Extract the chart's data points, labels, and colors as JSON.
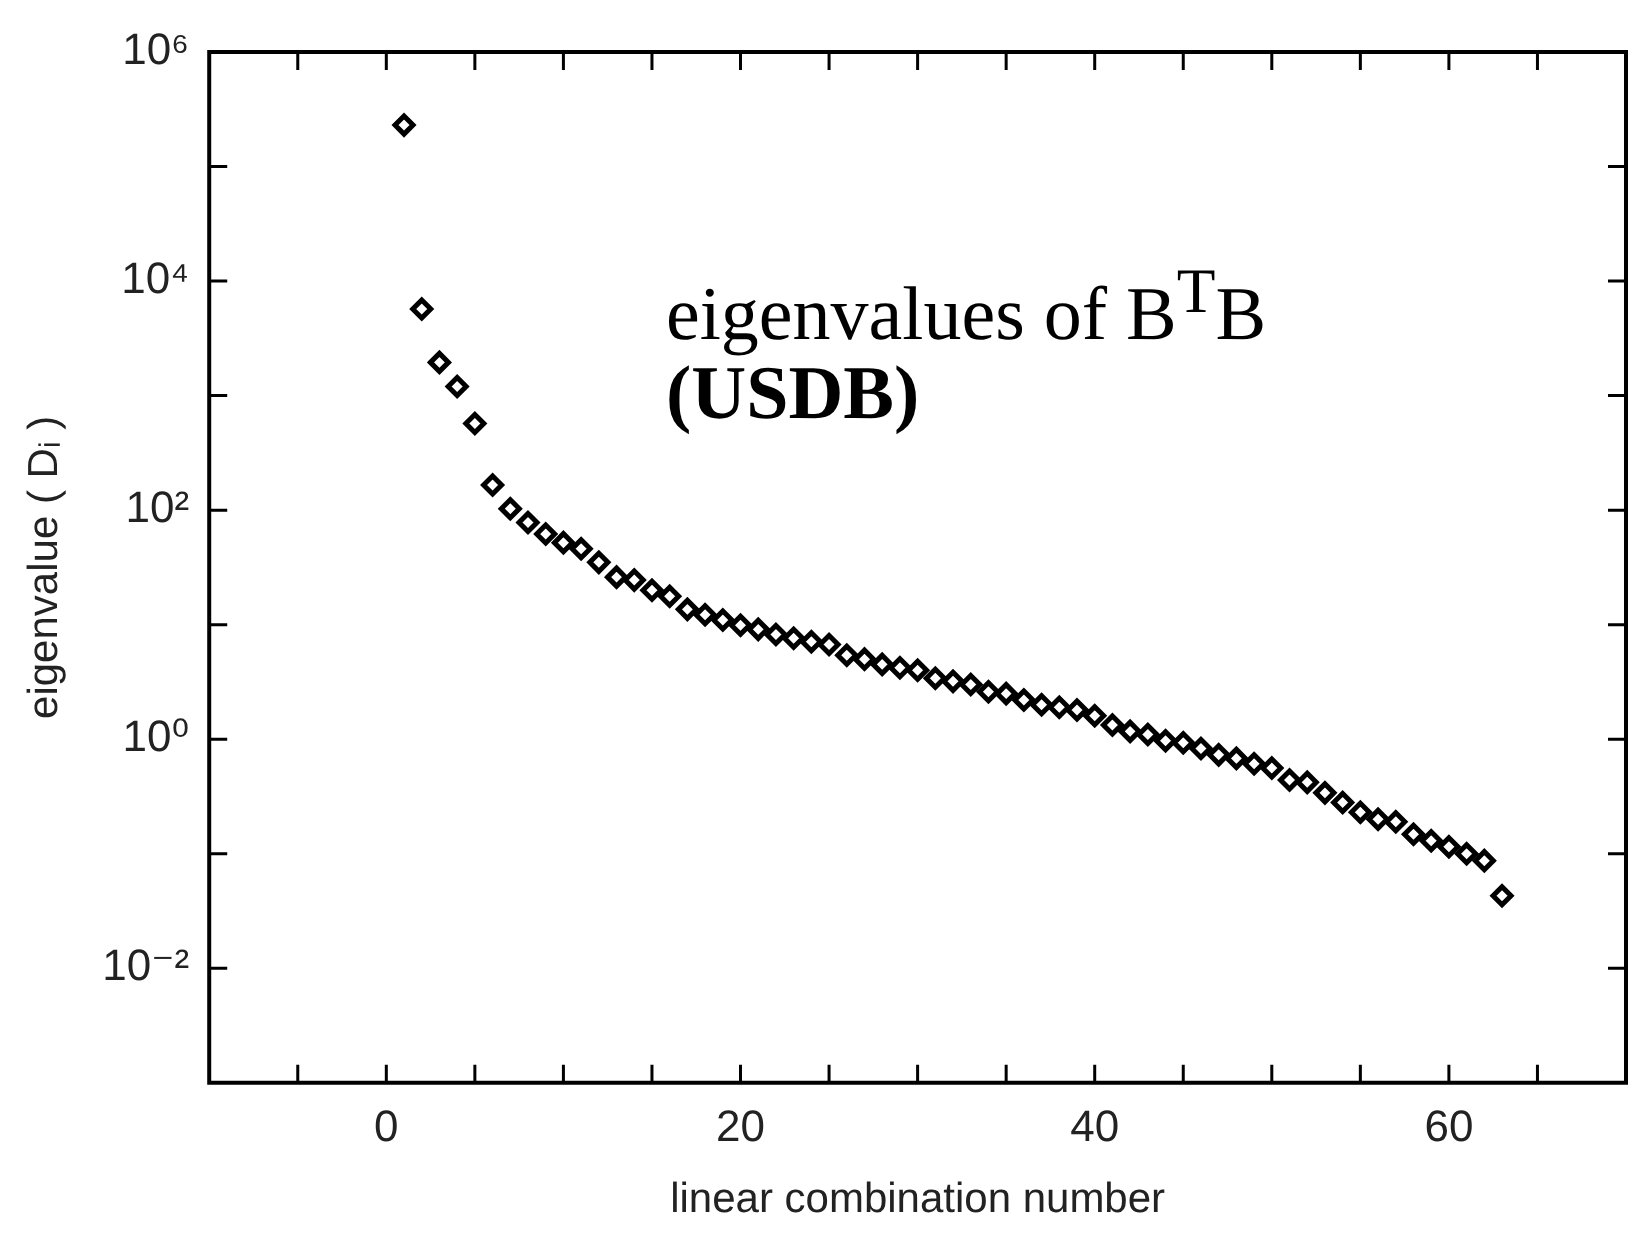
{
  "chart_data": {
    "type": "scatter",
    "xlabel": "linear combination number",
    "ylabel": "eigenvalue ( Dᵢ )",
    "annotations": [
      "eigenvalues of B$^{T}$B",
      "(USDB)"
    ],
    "log": "y",
    "grid": false,
    "legend": false,
    "marker": "diamond",
    "xlim": [
      -10,
      70
    ],
    "xticks": [
      {
        "value": -5,
        "label": null
      },
      0,
      {
        "value": 5,
        "label": null
      },
      {
        "value": 10,
        "label": null
      },
      {
        "value": 15,
        "label": null
      },
      20,
      {
        "value": 25,
        "label": null
      },
      {
        "value": 30,
        "label": null
      },
      {
        "value": 35,
        "label": null
      },
      40,
      {
        "value": 45,
        "label": null
      },
      {
        "value": 50,
        "label": null
      },
      {
        "value": 55,
        "label": null
      },
      60,
      {
        "value": 65,
        "label": null
      }
    ],
    "ylim": [
      0.001,
      1000000
    ],
    "yticks": [
      {
        "value": 0.01,
        "label": "10⁻²"
      },
      {
        "value": 0.1,
        "label": null
      },
      {
        "value": 1,
        "label": "10⁰"
      },
      {
        "value": 10,
        "label": null
      },
      {
        "value": 100,
        "label": "10²"
      },
      {
        "value": 1000,
        "label": null
      },
      {
        "value": 10000,
        "label": "10⁴"
      },
      {
        "value": 100000,
        "label": null
      },
      {
        "value": 1000000,
        "label": "10⁶"
      }
    ],
    "series": [
      {
        "color": "#000000",
        "x": [
          1,
          2,
          3,
          4,
          5,
          6,
          7,
          8,
          9,
          10,
          11,
          12,
          13,
          14,
          15,
          16,
          17,
          18,
          19,
          20,
          21,
          22,
          23,
          24,
          25,
          26,
          27,
          28,
          29,
          30,
          31,
          32,
          33,
          34,
          35,
          36,
          37,
          38,
          39,
          40,
          41,
          42,
          43,
          44,
          45,
          46,
          47,
          48,
          49,
          50,
          51,
          52,
          53,
          54,
          55,
          56,
          57,
          58,
          59,
          60,
          61,
          62,
          63
        ],
        "values": [
          230000,
          5700,
          1950,
          1200,
          570,
          166,
          103,
          78,
          62,
          52,
          46,
          35,
          26,
          24.5,
          20,
          17.7,
          13.6,
          12.2,
          11,
          9.9,
          9.1,
          8.2,
          7.6,
          7.1,
          6.7,
          5.4,
          5.0,
          4.5,
          4.2,
          4.0,
          3.4,
          3.2,
          3.0,
          2.6,
          2.5,
          2.2,
          2.0,
          1.9,
          1.8,
          1.6,
          1.33,
          1.17,
          1.1,
          0.97,
          0.93,
          0.83,
          0.73,
          0.68,
          0.61,
          0.56,
          0.44,
          0.42,
          0.34,
          0.28,
          0.23,
          0.2,
          0.19,
          0.148,
          0.13,
          0.115,
          0.1,
          0.087,
          0.043
        ]
      }
    ]
  }
}
